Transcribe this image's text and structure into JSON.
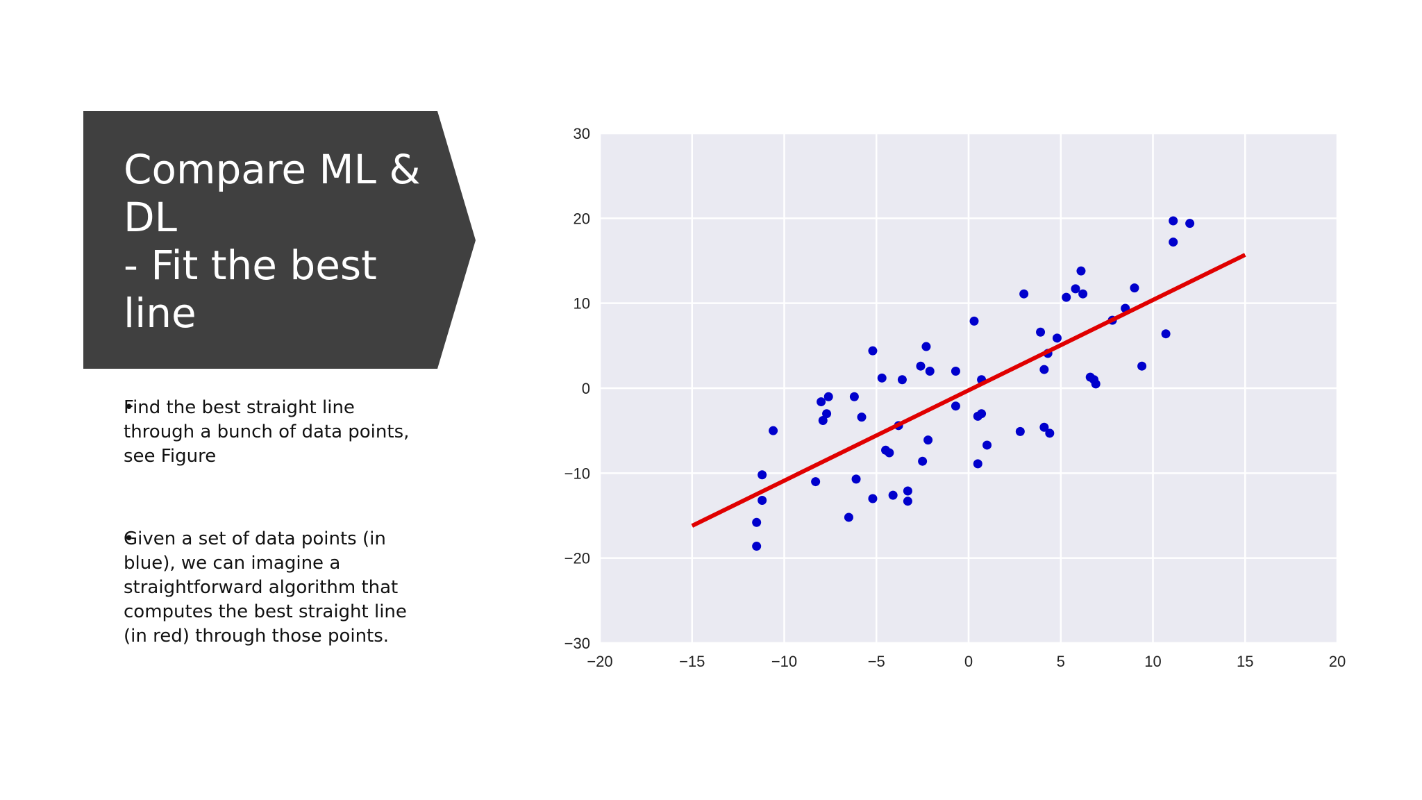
{
  "slide": {
    "title": "Compare ML &\nDL\n- Fit the best\nline",
    "bullets": [
      {
        "marker": "•",
        "text": "  Find the best straight line\nthrough a bunch of data points,\nsee Figure"
      },
      {
        "marker": "•",
        "text": "  Given a set of data points (in\nblue), we can imagine a\nstraightforward algorithm that\ncomputes the best straight line\n(in red) through those points."
      }
    ]
  },
  "colors": {
    "title_bg": "#404040",
    "plot_bg": "#EAEAF2",
    "grid": "#FFFFFF",
    "points": "#0000CC",
    "fit_line": "#E00000",
    "tick_text": "#222222"
  },
  "chart_data": {
    "type": "scatter",
    "xlim": [
      -20,
      20
    ],
    "ylim": [
      -30,
      30
    ],
    "x_ticks": [
      -20,
      -15,
      -10,
      -5,
      0,
      5,
      10,
      15,
      20
    ],
    "x_tick_labels": [
      "−20",
      "−15",
      "−10",
      "−5",
      "0",
      "5",
      "10",
      "15",
      "20"
    ],
    "y_ticks": [
      -30,
      -20,
      -10,
      0,
      10,
      20,
      30
    ],
    "y_tick_labels": [
      "−30",
      "−20",
      "−10",
      "0",
      "10",
      "20",
      "30"
    ],
    "grid": true,
    "points": [
      [
        -11.5,
        -18.6
      ],
      [
        -11.5,
        -15.8
      ],
      [
        -11.2,
        -13.2
      ],
      [
        -11.2,
        -10.2
      ],
      [
        -10.6,
        -5.0
      ],
      [
        -8.3,
        -11.0
      ],
      [
        -8.0,
        -1.6
      ],
      [
        -7.9,
        -3.8
      ],
      [
        -7.7,
        -3.0
      ],
      [
        -7.6,
        -1.0
      ],
      [
        -6.5,
        -15.2
      ],
      [
        -6.2,
        -1.0
      ],
      [
        -6.1,
        -10.7
      ],
      [
        -5.8,
        -3.4
      ],
      [
        -5.2,
        4.4
      ],
      [
        -5.2,
        -13.0
      ],
      [
        -4.7,
        1.2
      ],
      [
        -4.5,
        -7.3
      ],
      [
        -4.3,
        -7.6
      ],
      [
        -4.1,
        -12.6
      ],
      [
        -3.8,
        -4.4
      ],
      [
        -3.6,
        1.0
      ],
      [
        -3.3,
        -12.1
      ],
      [
        -3.3,
        -13.3
      ],
      [
        -2.6,
        2.6
      ],
      [
        -2.5,
        -8.6
      ],
      [
        -2.3,
        4.9
      ],
      [
        -2.2,
        -6.1
      ],
      [
        -2.1,
        2.0
      ],
      [
        -0.7,
        2.0
      ],
      [
        -0.7,
        -2.1
      ],
      [
        0.3,
        7.9
      ],
      [
        0.5,
        -8.9
      ],
      [
        0.5,
        -3.3
      ],
      [
        0.7,
        1.0
      ],
      [
        0.7,
        -3.0
      ],
      [
        1.0,
        -6.7
      ],
      [
        2.8,
        -5.1
      ],
      [
        3.0,
        11.1
      ],
      [
        3.9,
        6.6
      ],
      [
        4.1,
        2.2
      ],
      [
        4.1,
        -4.6
      ],
      [
        4.3,
        4.1
      ],
      [
        4.4,
        -5.3
      ],
      [
        4.8,
        5.9
      ],
      [
        5.3,
        10.7
      ],
      [
        5.8,
        11.7
      ],
      [
        6.1,
        13.8
      ],
      [
        6.2,
        11.1
      ],
      [
        6.6,
        1.3
      ],
      [
        6.8,
        1.0
      ],
      [
        6.9,
        0.5
      ],
      [
        7.8,
        8.0
      ],
      [
        8.5,
        9.4
      ],
      [
        9.0,
        11.8
      ],
      [
        9.4,
        2.6
      ],
      [
        10.7,
        6.4
      ],
      [
        11.1,
        19.7
      ],
      [
        11.1,
        17.2
      ],
      [
        12.0,
        19.4
      ]
    ],
    "fit_line": {
      "x": [
        -15,
        15
      ],
      "y": [
        -16.2,
        15.7
      ]
    }
  }
}
